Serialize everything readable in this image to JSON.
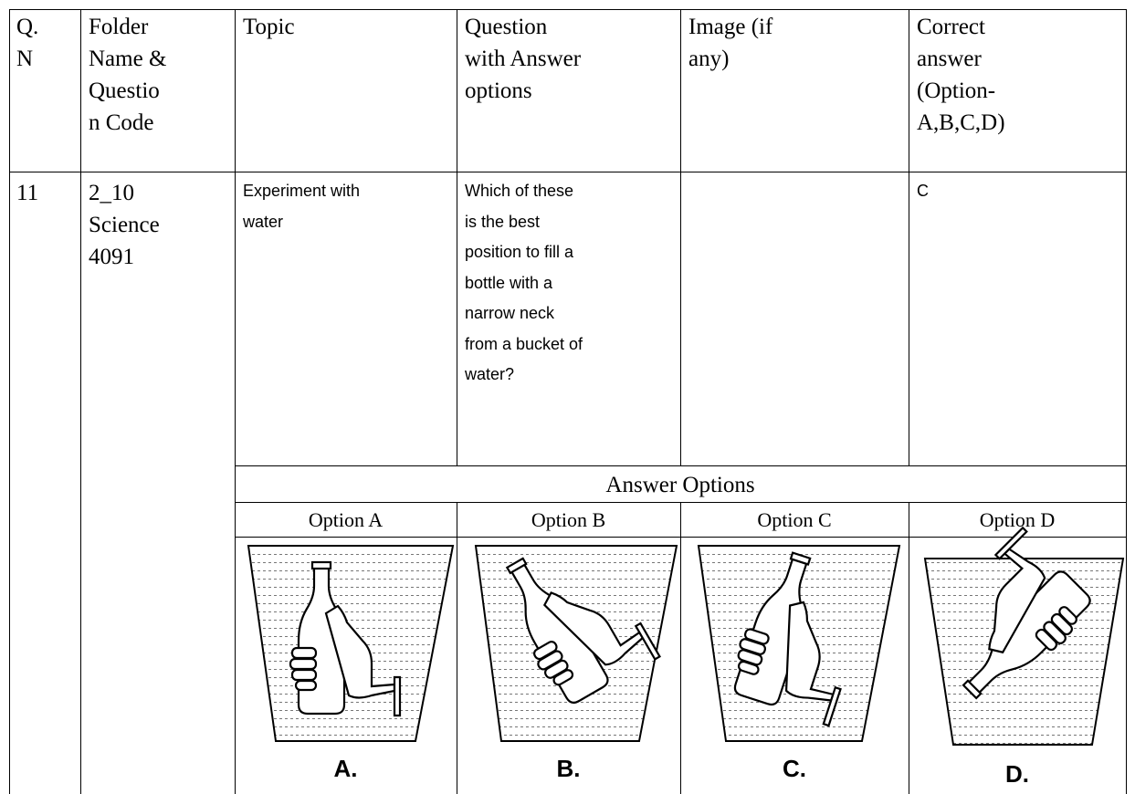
{
  "header": {
    "qn": [
      "Q.",
      "N"
    ],
    "folder": [
      "Folder",
      "Name &",
      "Questio",
      "n Code"
    ],
    "topic": [
      "Topic"
    ],
    "question": [
      "Question",
      "with Answer",
      "options"
    ],
    "image": [
      "Image (if",
      "any)"
    ],
    "correct": [
      "Correct",
      "answer",
      "(Option-",
      "A,B,C,D)"
    ]
  },
  "row": {
    "qn": "11",
    "folder": [
      "2_10",
      "Science",
      "4091"
    ],
    "topic": [
      "Experiment with",
      "water"
    ],
    "question": [
      "Which of these",
      "is the best",
      "position to fill a",
      "bottle with a",
      "narrow neck",
      "from a bucket of",
      "water?"
    ],
    "correct": "C"
  },
  "answer_options": {
    "title": "Answer Options",
    "options": [
      {
        "label": "Option A",
        "letter": "A."
      },
      {
        "label": "Option B",
        "letter": "B."
      },
      {
        "label": "Option C",
        "letter": "C."
      },
      {
        "label": "Option D",
        "letter": "D."
      }
    ]
  }
}
